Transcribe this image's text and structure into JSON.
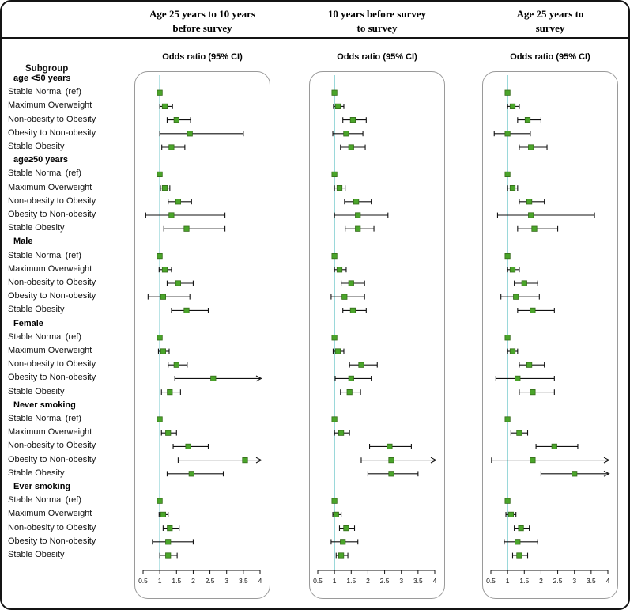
{
  "figure": {
    "subgroup_header": "Subgroup"
  },
  "chart_data": {
    "type": "forest",
    "x_range": [
      0.5,
      4
    ],
    "x_ticks": [
      0.5,
      1,
      1.5,
      2,
      2.5,
      3,
      3.5,
      4
    ],
    "reference_line": 1,
    "ref_line_color": "#8ed3d6",
    "marker_color": "#4aa52a",
    "marker_edge_color": "#356b1a",
    "ci_color": "#111111",
    "groups": [
      "age <50 years",
      "age≥50 years",
      "Male",
      "Female",
      "Never smoking",
      "Ever smoking"
    ],
    "item_labels": [
      "Stable Normal (ref)",
      "Maximum Overweight",
      "Non-obesity to Obesity",
      "Obesity to Non-obesity",
      "Stable Obesity"
    ],
    "panels": [
      {
        "title": "Age 25 years to 10 years\nbefore survey",
        "axis_label": "Odds ratio (95% CI)",
        "estimates": [
          [
            {
              "or": 1,
              "ref": true
            },
            {
              "or": 1.15,
              "lo": 1.0,
              "hi": 1.38
            },
            {
              "or": 1.5,
              "lo": 1.22,
              "hi": 1.92
            },
            {
              "or": 1.9,
              "lo": 1.0,
              "hi": 3.5
            },
            {
              "or": 1.35,
              "lo": 1.06,
              "hi": 1.75
            }
          ],
          [
            {
              "or": 1,
              "ref": true
            },
            {
              "or": 1.15,
              "lo": 1.02,
              "hi": 1.3
            },
            {
              "or": 1.55,
              "lo": 1.25,
              "hi": 1.95
            },
            {
              "or": 1.35,
              "lo": 0.58,
              "hi": 2.95
            },
            {
              "or": 1.8,
              "lo": 1.12,
              "hi": 2.95
            }
          ],
          [
            {
              "or": 1,
              "ref": true
            },
            {
              "or": 1.15,
              "lo": 0.98,
              "hi": 1.35
            },
            {
              "or": 1.55,
              "lo": 1.22,
              "hi": 2.0
            },
            {
              "or": 1.1,
              "lo": 0.65,
              "hi": 1.9
            },
            {
              "or": 1.8,
              "lo": 1.35,
              "hi": 2.45
            }
          ],
          [
            {
              "or": 1,
              "ref": true
            },
            {
              "or": 1.1,
              "lo": 0.96,
              "hi": 1.28
            },
            {
              "or": 1.5,
              "lo": 1.25,
              "hi": 1.82
            },
            {
              "or": 2.6,
              "lo": 1.45,
              "hi": 4.0,
              "arrow": true
            },
            {
              "or": 1.3,
              "lo": 1.05,
              "hi": 1.62
            }
          ],
          [
            {
              "or": 1,
              "ref": true
            },
            {
              "or": 1.25,
              "lo": 1.05,
              "hi": 1.5
            },
            {
              "or": 1.85,
              "lo": 1.4,
              "hi": 2.45
            },
            {
              "or": 3.55,
              "lo": 1.55,
              "hi": 4.0,
              "arrow": true
            },
            {
              "or": 1.95,
              "lo": 1.22,
              "hi": 2.9
            }
          ],
          [
            {
              "or": 1,
              "ref": true
            },
            {
              "or": 1.1,
              "lo": 0.98,
              "hi": 1.25
            },
            {
              "or": 1.3,
              "lo": 1.1,
              "hi": 1.58
            },
            {
              "or": 1.25,
              "lo": 0.78,
              "hi": 2.0
            },
            {
              "or": 1.25,
              "lo": 1.0,
              "hi": 1.52
            }
          ]
        ]
      },
      {
        "title": "10 years before survey\nto survey",
        "axis_label": "Odds ratio (95% CI)",
        "estimates": [
          [
            {
              "or": 1,
              "ref": true
            },
            {
              "or": 1.1,
              "lo": 0.97,
              "hi": 1.28
            },
            {
              "or": 1.55,
              "lo": 1.25,
              "hi": 1.95
            },
            {
              "or": 1.35,
              "lo": 0.95,
              "hi": 1.85
            },
            {
              "or": 1.5,
              "lo": 1.18,
              "hi": 1.92
            }
          ],
          [
            {
              "or": 1,
              "ref": true
            },
            {
              "or": 1.15,
              "lo": 1.0,
              "hi": 1.32
            },
            {
              "or": 1.65,
              "lo": 1.3,
              "hi": 2.1
            },
            {
              "or": 1.7,
              "lo": 1.0,
              "hi": 2.6
            },
            {
              "or": 1.7,
              "lo": 1.32,
              "hi": 2.18
            }
          ],
          [
            {
              "or": 1,
              "ref": true
            },
            {
              "or": 1.15,
              "lo": 1.0,
              "hi": 1.35
            },
            {
              "or": 1.5,
              "lo": 1.2,
              "hi": 1.9
            },
            {
              "or": 1.3,
              "lo": 0.9,
              "hi": 1.9
            },
            {
              "or": 1.55,
              "lo": 1.25,
              "hi": 1.95
            }
          ],
          [
            {
              "or": 1,
              "ref": true
            },
            {
              "or": 1.1,
              "lo": 0.96,
              "hi": 1.28
            },
            {
              "or": 1.8,
              "lo": 1.45,
              "hi": 2.28
            },
            {
              "or": 1.5,
              "lo": 1.02,
              "hi": 2.1
            },
            {
              "or": 1.45,
              "lo": 1.18,
              "hi": 1.78
            }
          ],
          [
            {
              "or": 1,
              "ref": true
            },
            {
              "or": 1.2,
              "lo": 1.0,
              "hi": 1.45
            },
            {
              "or": 2.65,
              "lo": 2.05,
              "hi": 3.3
            },
            {
              "or": 2.7,
              "lo": 1.8,
              "hi": 4.0,
              "arrow": true
            },
            {
              "or": 2.7,
              "lo": 2.0,
              "hi": 3.5
            }
          ],
          [
            {
              "or": 1,
              "ref": true
            },
            {
              "or": 1.05,
              "lo": 0.95,
              "hi": 1.2
            },
            {
              "or": 1.35,
              "lo": 1.15,
              "hi": 1.6
            },
            {
              "or": 1.25,
              "lo": 0.9,
              "hi": 1.7
            },
            {
              "or": 1.2,
              "lo": 1.05,
              "hi": 1.4
            }
          ]
        ]
      },
      {
        "title": "Age 25 years to\nsurvey",
        "axis_label": "Odds ratio (95% CI)",
        "estimates": [
          [
            {
              "or": 1,
              "ref": true
            },
            {
              "or": 1.15,
              "lo": 1.0,
              "hi": 1.35
            },
            {
              "or": 1.6,
              "lo": 1.3,
              "hi": 2.0
            },
            {
              "or": 1.0,
              "lo": 0.6,
              "hi": 1.68
            },
            {
              "or": 1.7,
              "lo": 1.35,
              "hi": 2.18
            }
          ],
          [
            {
              "or": 1,
              "ref": true
            },
            {
              "or": 1.15,
              "lo": 1.0,
              "hi": 1.3
            },
            {
              "or": 1.65,
              "lo": 1.35,
              "hi": 2.1
            },
            {
              "or": 1.7,
              "lo": 0.7,
              "hi": 3.6
            },
            {
              "or": 1.8,
              "lo": 1.3,
              "hi": 2.5
            }
          ],
          [
            {
              "or": 1,
              "ref": true
            },
            {
              "or": 1.15,
              "lo": 1.0,
              "hi": 1.35
            },
            {
              "or": 1.5,
              "lo": 1.2,
              "hi": 1.9
            },
            {
              "or": 1.25,
              "lo": 0.8,
              "hi": 1.95
            },
            {
              "or": 1.75,
              "lo": 1.3,
              "hi": 2.4
            }
          ],
          [
            {
              "or": 1,
              "ref": true
            },
            {
              "or": 1.15,
              "lo": 1.0,
              "hi": 1.3
            },
            {
              "or": 1.65,
              "lo": 1.35,
              "hi": 2.1
            },
            {
              "or": 1.3,
              "lo": 0.65,
              "hi": 2.4
            },
            {
              "or": 1.75,
              "lo": 1.35,
              "hi": 2.4
            }
          ],
          [
            {
              "or": 1,
              "ref": true
            },
            {
              "or": 1.35,
              "lo": 1.1,
              "hi": 1.6
            },
            {
              "or": 2.4,
              "lo": 1.85,
              "hi": 3.1
            },
            {
              "or": 1.75,
              "lo": 0.52,
              "hi": 4.0,
              "arrow": true
            },
            {
              "or": 3.0,
              "lo": 2.0,
              "hi": 4.0,
              "arrow": true
            }
          ],
          [
            {
              "or": 1,
              "ref": true
            },
            {
              "or": 1.1,
              "lo": 0.95,
              "hi": 1.25
            },
            {
              "or": 1.4,
              "lo": 1.2,
              "hi": 1.65
            },
            {
              "or": 1.3,
              "lo": 0.9,
              "hi": 1.9
            },
            {
              "or": 1.35,
              "lo": 1.15,
              "hi": 1.6
            }
          ]
        ]
      }
    ]
  }
}
